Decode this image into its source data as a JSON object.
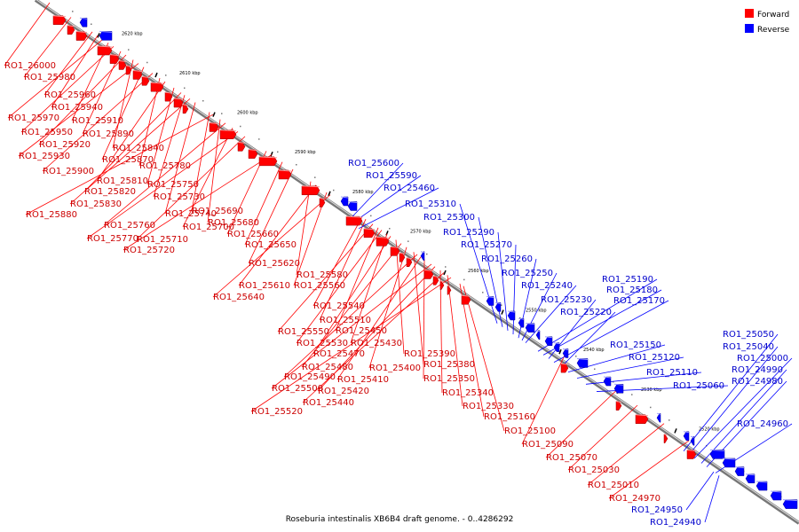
{
  "caption": "Roseburia intestinalis XB6B4 draft genome. - 0..4286292",
  "legend": {
    "items": [
      {
        "label": "Forward",
        "color": "#ff0000"
      },
      {
        "label": "Reverse",
        "color": "#0000ff"
      }
    ]
  },
  "ticks": [
    "2620 kbp",
    "2610 kbp",
    "2600 kbp",
    "2590 kbp",
    "2580 kbp",
    "2570 kbp",
    "2560 kbp",
    "2550 kbp",
    "2540 kbp",
    "2530 kbp",
    "2520 kbp"
  ],
  "forward_genes": [
    "RO1_26000",
    "RO1_25980",
    "RO1_25960",
    "RO1_25940",
    "RO1_25970",
    "RO1_25910",
    "RO1_25950",
    "RO1_25890",
    "RO1_25920",
    "RO1_25840",
    "RO1_25930",
    "RO1_25870",
    "RO1_25900",
    "RO1_25780",
    "RO1_25810",
    "RO1_25750",
    "RO1_25820",
    "RO1_25730",
    "RO1_25830",
    "RO1_25740",
    "RO1_25690",
    "RO1_25880",
    "RO1_25680",
    "RO1_25760",
    "RO1_25700",
    "RO1_25770",
    "RO1_25710",
    "RO1_25660",
    "RO1_25720",
    "RO1_25650",
    "RO1_25620",
    "RO1_25580",
    "RO1_25610",
    "RO1_25560",
    "RO1_25640",
    "RO1_25540",
    "RO1_25510",
    "RO1_25550",
    "RO1_25450",
    "RO1_25530",
    "RO1_25430",
    "RO1_25470",
    "RO1_25390",
    "RO1_25480",
    "RO1_25400",
    "RO1_25380",
    "RO1_25490",
    "RO1_25410",
    "RO1_25350",
    "RO1_25500",
    "RO1_25420",
    "RO1_25340",
    "RO1_25440",
    "RO1_25330",
    "RO1_25520",
    "RO1_25160",
    "RO1_25100",
    "RO1_25090",
    "RO1_25070",
    "RO1_25030",
    "RO1_25010",
    "RO1_24970"
  ],
  "reverse_genes": [
    "RO1_25600",
    "RO1_25590",
    "RO1_25460",
    "RO1_25310",
    "RO1_25300",
    "RO1_25290",
    "RO1_25270",
    "RO1_25260",
    "RO1_25250",
    "RO1_25240",
    "RO1_25190",
    "RO1_25180",
    "RO1_25230",
    "RO1_25170",
    "RO1_25220",
    "RO1_25150",
    "RO1_25120",
    "RO1_25110",
    "RO1_25060",
    "RO1_25050",
    "RO1_25040",
    "RO1_25000",
    "RO1_24990",
    "RO1_24980",
    "RO1_24960",
    "RO1_24950",
    "RO1_24940"
  ]
}
